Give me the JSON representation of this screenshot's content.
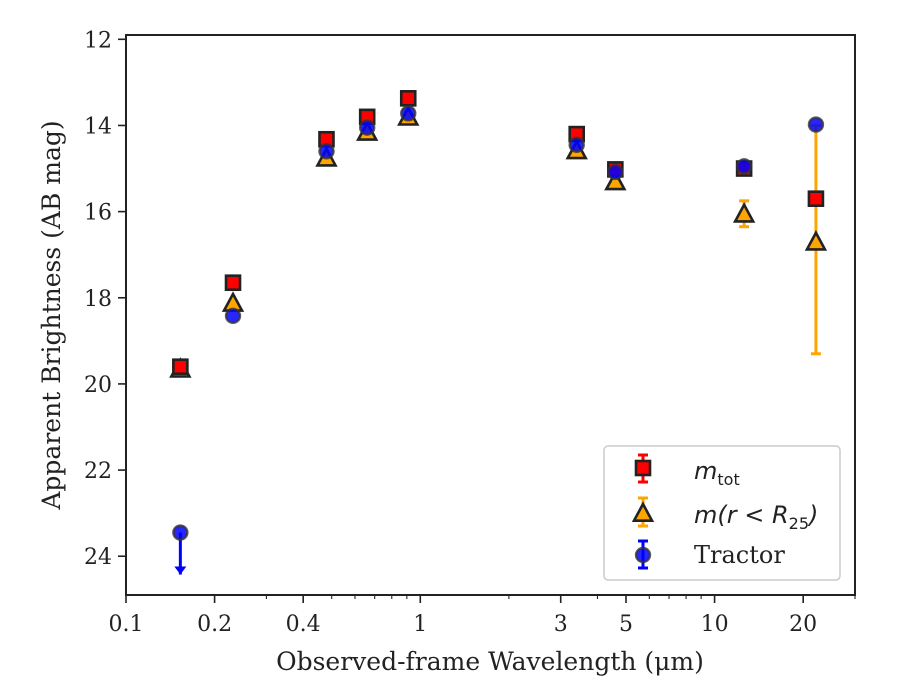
{
  "chart_data": {
    "type": "scatter",
    "xscale": "log",
    "xlim": [
      0.1,
      30
    ],
    "ylim": [
      24.9,
      11.9
    ],
    "y_inverted": true,
    "xlabel": "Observed-frame Wavelength (μm)",
    "ylabel": "Apparent Brightness (AB mag)",
    "x_ticks": [
      0.1,
      0.2,
      0.4,
      1,
      3,
      5,
      10,
      20
    ],
    "x_tick_labels": [
      "0.1",
      "0.2",
      "0.4",
      "1",
      "3",
      "5",
      "10",
      "20"
    ],
    "y_ticks": [
      12,
      14,
      16,
      18,
      20,
      22,
      24
    ],
    "y_tick_labels": [
      "12",
      "14",
      "16",
      "18",
      "20",
      "22",
      "24"
    ],
    "legend_position": "lower right",
    "grid": false,
    "series": [
      {
        "name": "m_tot",
        "marker": "square",
        "color": "#ff0000",
        "error_color": "#ff0000",
        "points": [
          {
            "x": 0.153,
            "y": 19.6
          },
          {
            "x": 0.231,
            "y": 17.65
          },
          {
            "x": 0.48,
            "y": 14.32
          },
          {
            "x": 0.66,
            "y": 13.8
          },
          {
            "x": 0.91,
            "y": 13.37
          },
          {
            "x": 3.4,
            "y": 14.2
          },
          {
            "x": 4.6,
            "y": 15.02
          },
          {
            "x": 12.6,
            "y": 15.0
          },
          {
            "x": 22.1,
            "y": 15.7
          }
        ]
      },
      {
        "name": "m(r < R25)",
        "marker": "triangle",
        "color": "#ffa500",
        "error_color": "#ffa500",
        "points": [
          {
            "x": 0.153,
            "y": 19.65
          },
          {
            "x": 0.231,
            "y": 18.12
          },
          {
            "x": 0.48,
            "y": 14.75
          },
          {
            "x": 0.66,
            "y": 14.15
          },
          {
            "x": 0.91,
            "y": 13.8
          },
          {
            "x": 3.4,
            "y": 14.58
          },
          {
            "x": 4.6,
            "y": 15.3
          },
          {
            "x": 12.6,
            "y": 16.05,
            "err_low": 15.75,
            "err_high": 16.35
          },
          {
            "x": 22.1,
            "y": 16.7,
            "err_low": 14.0,
            "err_high": 19.3
          }
        ]
      },
      {
        "name": "Tractor",
        "marker": "circle",
        "color": "#0000ff",
        "error_color": "#0000ff",
        "points": [
          {
            "x": 0.153,
            "y": 23.45,
            "upper_limit": true
          },
          {
            "x": 0.231,
            "y": 18.42
          },
          {
            "x": 0.48,
            "y": 14.6
          },
          {
            "x": 0.66,
            "y": 14.05
          },
          {
            "x": 0.91,
            "y": 13.72
          },
          {
            "x": 3.4,
            "y": 14.45
          },
          {
            "x": 4.6,
            "y": 15.08
          },
          {
            "x": 12.6,
            "y": 14.95
          },
          {
            "x": 22.1,
            "y": 13.98
          }
        ]
      }
    ]
  },
  "legend": {
    "entries": [
      {
        "label": "m",
        "sub": "tot",
        "marker": "square"
      },
      {
        "label": "m(r < R",
        "sub": "25",
        "tail": ")",
        "marker": "triangle"
      },
      {
        "label": "Tractor",
        "marker": "circle"
      }
    ]
  }
}
